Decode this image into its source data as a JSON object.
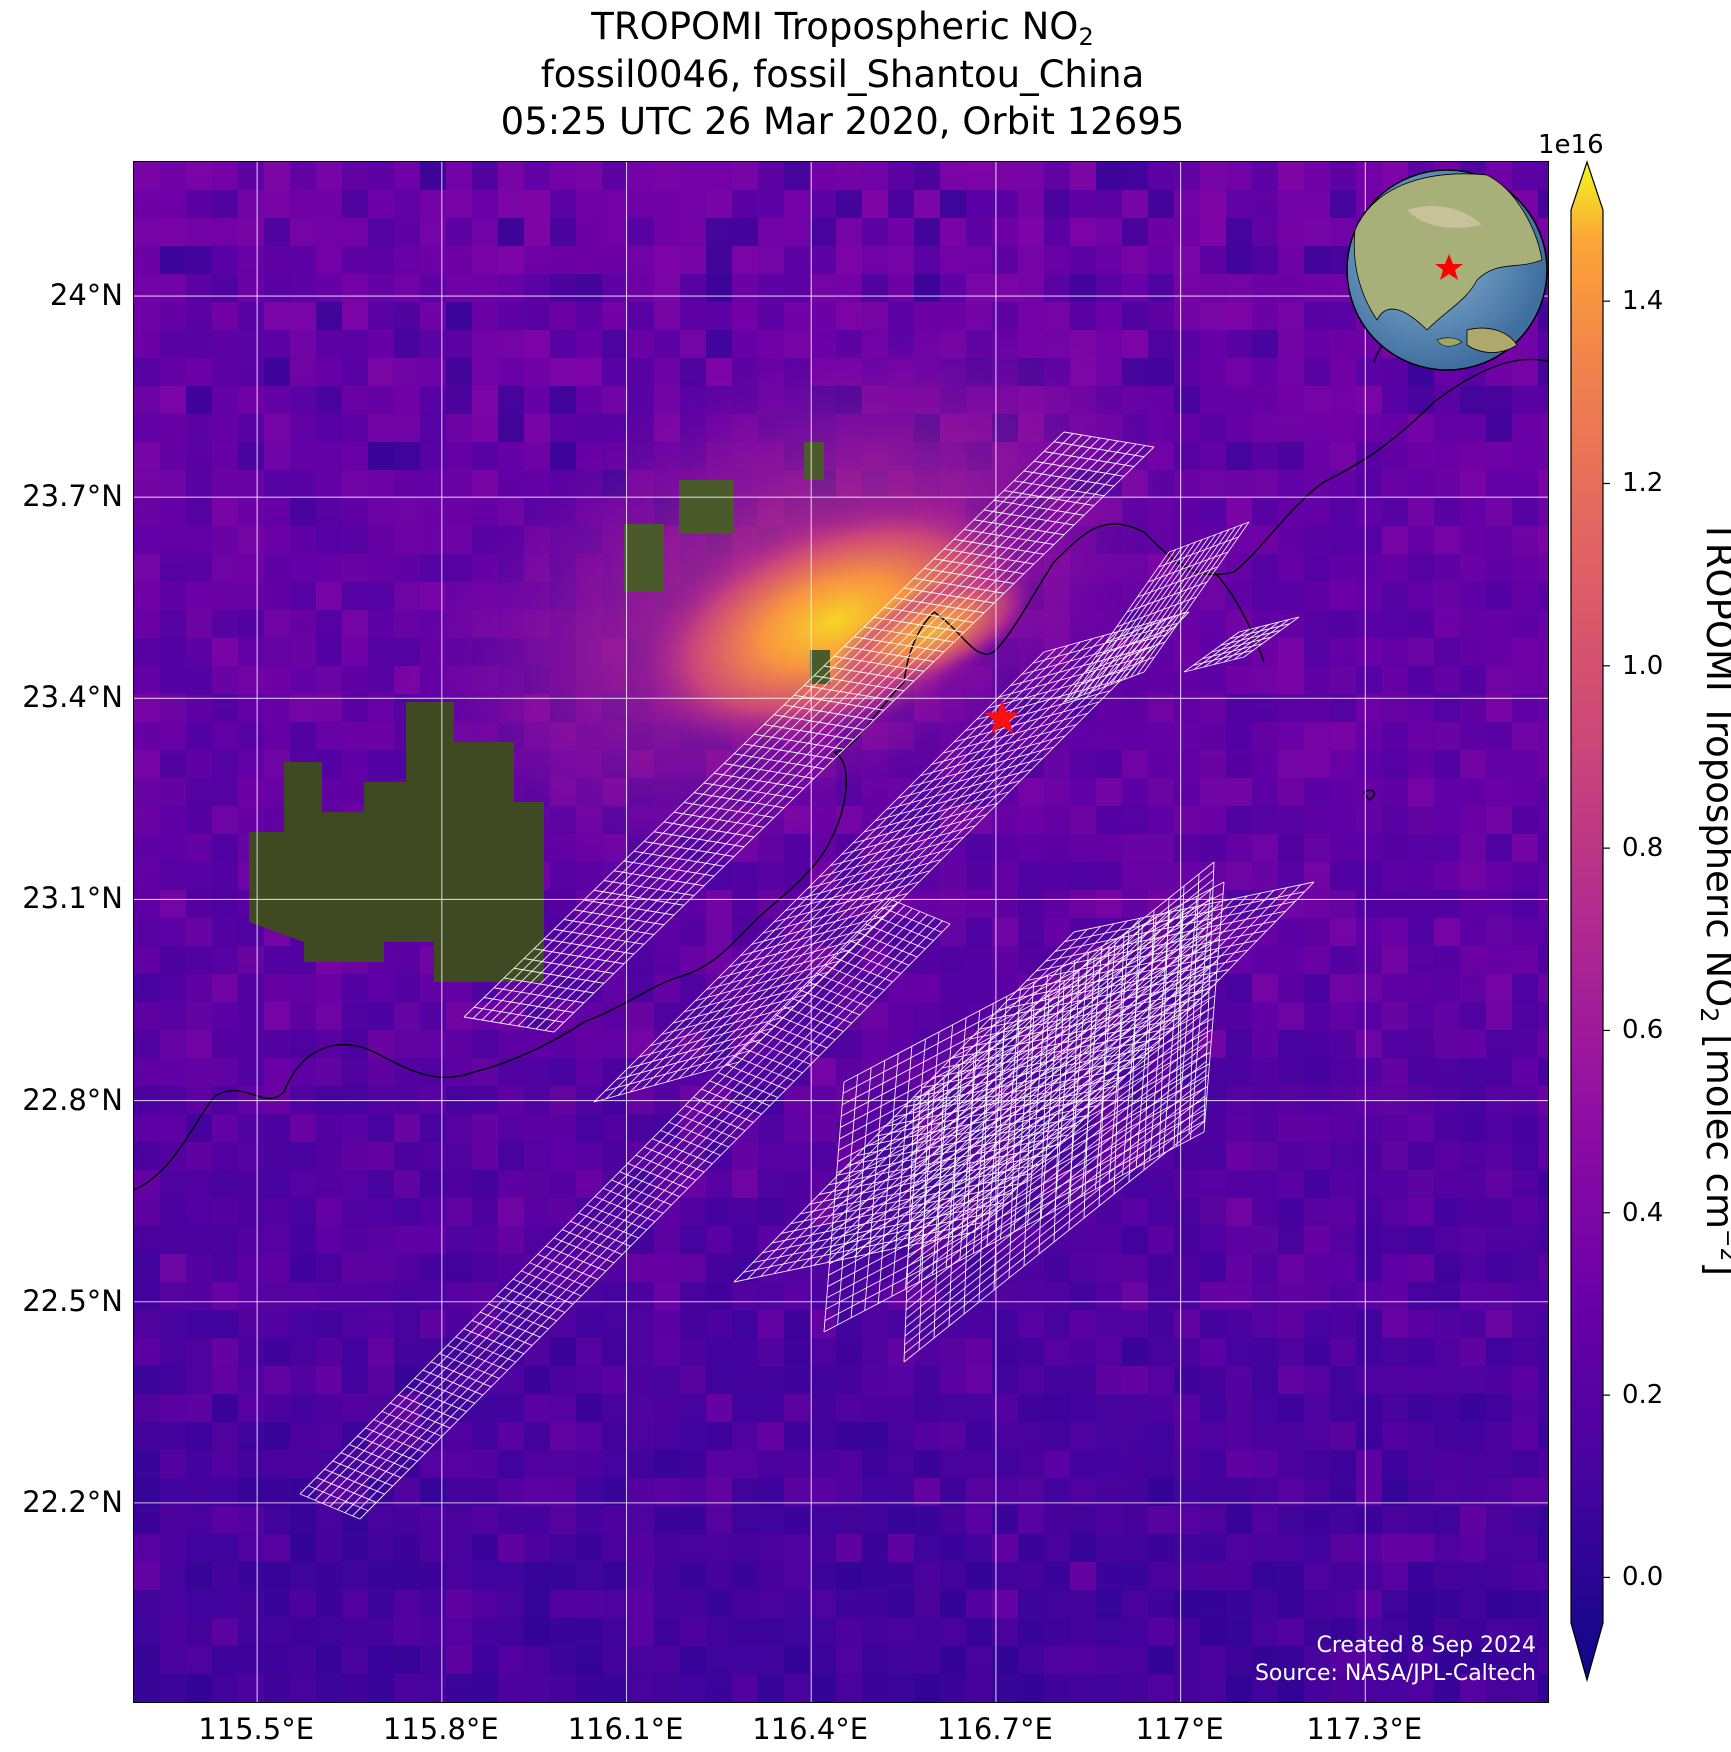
{
  "title": {
    "line1_prefix": "TROPOMI Tropospheric NO",
    "line1_sub": "2",
    "line2": "fossil0046, fossil_Shantou_China",
    "line3": "05:25 UTC 26 Mar 2020, Orbit 12695"
  },
  "map": {
    "lon_range": [
      115.3,
      117.6
    ],
    "lat_range": [
      21.9,
      24.2
    ],
    "lat_ticks": [
      "24°N",
      "23.7°N",
      "23.4°N",
      "23.1°N",
      "22.8°N",
      "22.5°N",
      "22.2°N"
    ],
    "lon_ticks": [
      "115.5°E",
      "115.8°E",
      "116.1°E",
      "116.4°E",
      "116.7°E",
      "117°E",
      "117.3°E"
    ],
    "site_marker": {
      "lon": 116.71,
      "lat": 23.37,
      "color": "#ff0000"
    },
    "credit_line1": "Created 8 Sep 2024",
    "credit_line2": "Source: NASA/JPL-Caltech",
    "inset_globe": "globe-inset-icon"
  },
  "colorbar": {
    "exponent": "1e16",
    "ticks": [
      "1.4",
      "1.2",
      "1.0",
      "0.8",
      "0.6",
      "0.4",
      "0.2",
      "0.0"
    ],
    "range": [
      -0.05,
      1.5
    ],
    "label_prefix": "TROPOMI Tropospheric NO",
    "label_sub": "2",
    "label_mid": " [molec cm",
    "label_sup": "−2",
    "label_suffix": "]",
    "colormap": "plasma"
  }
}
